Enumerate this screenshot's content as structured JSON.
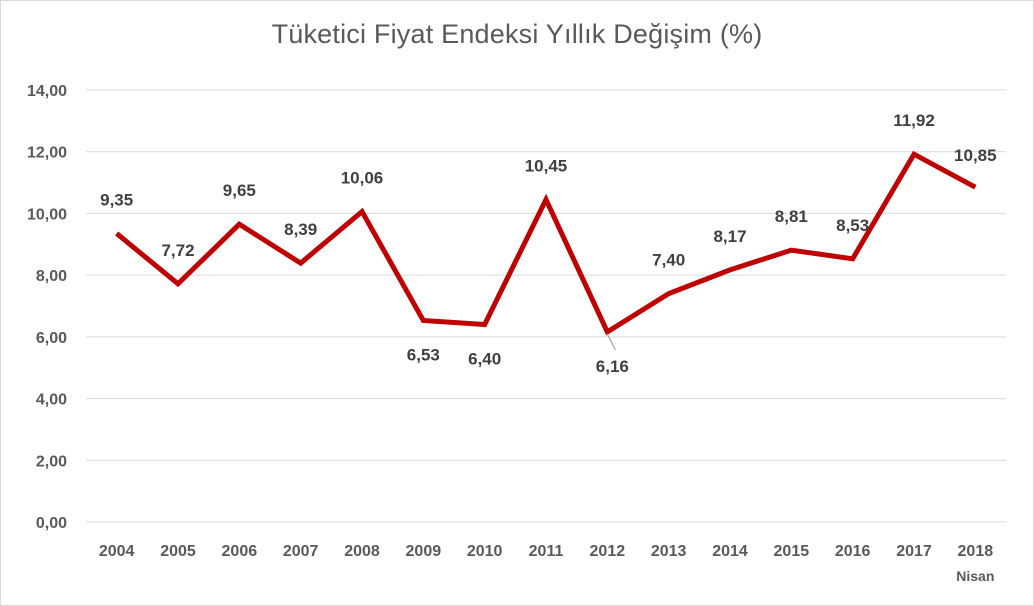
{
  "chart_data": {
    "type": "line",
    "title": "Tüketici Fiyat Endeksi Yıllık Değişim (%)",
    "categories": [
      "2004",
      "2005",
      "2006",
      "2007",
      "2008",
      "2009",
      "2010",
      "2011",
      "2012",
      "2013",
      "2014",
      "2015",
      "2016",
      "2017",
      "2018"
    ],
    "category_sublabels": [
      "",
      "",
      "",
      "",
      "",
      "",
      "",
      "",
      "",
      "",
      "",
      "",
      "",
      "",
      "Nisan"
    ],
    "series": [
      {
        "values": [
          9.35,
          7.72,
          9.65,
          8.39,
          10.06,
          6.53,
          6.4,
          10.45,
          6.16,
          7.4,
          8.17,
          8.81,
          8.53,
          11.92,
          10.85
        ],
        "labels": [
          "9,35",
          "7,72",
          "9,65",
          "8,39",
          "10,06",
          "6,53",
          "6,40",
          "10,45",
          "6,16",
          "7,40",
          "8,17",
          "8,81",
          "8,53",
          "11,92",
          "10,85"
        ],
        "color": "#c00000"
      }
    ],
    "ylim": [
      0,
      14
    ],
    "yticks": [
      0,
      2,
      4,
      6,
      8,
      10,
      12,
      14
    ],
    "ytick_labels": [
      "0,00",
      "2,00",
      "4,00",
      "6,00",
      "8,00",
      "10,00",
      "12,00",
      "14,00"
    ],
    "grid": true,
    "legend": "none",
    "gridline_color": "#d9d9d9"
  }
}
